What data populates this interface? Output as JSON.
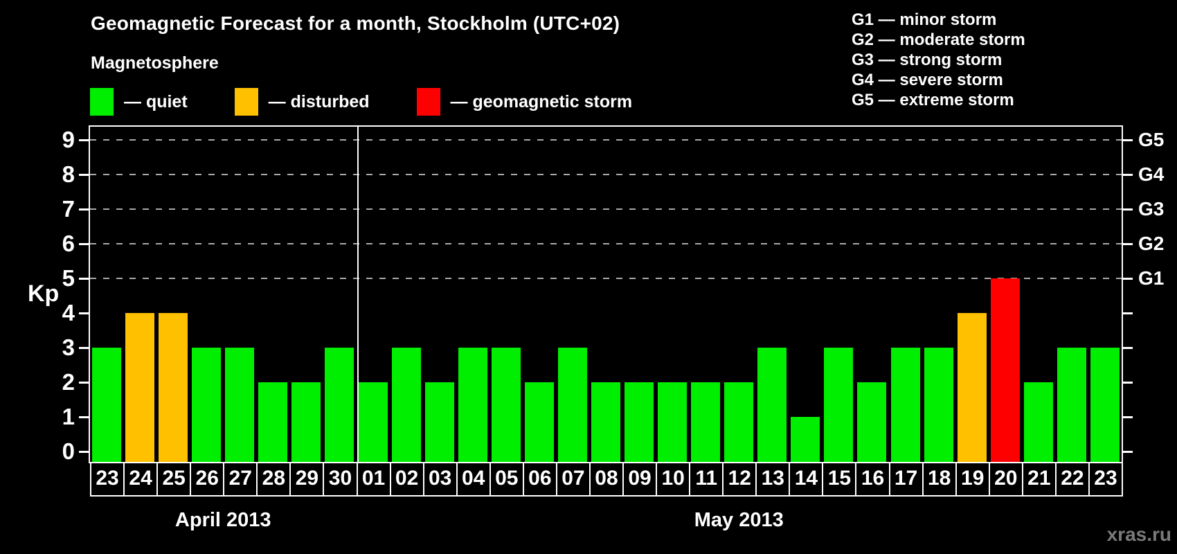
{
  "title": "Geomagnetic Forecast for a month, Stockholm (UTC+02)",
  "legend": {
    "heading": "Magnetosphere",
    "items": [
      {
        "name": "quiet",
        "label": "— quiet",
        "color": "#00ee00"
      },
      {
        "name": "disturbed",
        "label": "— disturbed",
        "color": "#ffc000"
      },
      {
        "name": "storm",
        "label": "— geomagnetic storm",
        "color": "#ff0000"
      }
    ]
  },
  "g_scale_legend": [
    "G1 — minor storm",
    "G2 — moderate storm",
    "G3 — strong storm",
    "G4 — severe storm",
    "G5 — extreme storm"
  ],
  "y_axis": {
    "label": "Kp",
    "ticks": [
      0,
      1,
      2,
      3,
      4,
      5,
      6,
      7,
      8,
      9
    ]
  },
  "right_axis": {
    "labels": [
      {
        "text": "G1",
        "kp": 5
      },
      {
        "text": "G2",
        "kp": 6
      },
      {
        "text": "G3",
        "kp": 7
      },
      {
        "text": "G4",
        "kp": 8
      },
      {
        "text": "G5",
        "kp": 9
      }
    ]
  },
  "months": [
    {
      "label": "April 2013",
      "days": 8
    },
    {
      "label": "May 2013",
      "days": 23
    }
  ],
  "watermark": "xras.ru",
  "chart_data": {
    "type": "bar",
    "title": "Geomagnetic Forecast for a month, Stockholm (UTC+02)",
    "ylabel": "Kp",
    "ylim": [
      0,
      9
    ],
    "grid": "dashed horizontal at Kp 5-9",
    "gridlines_at": [
      5,
      6,
      7,
      8,
      9
    ],
    "legend_position": "top-left",
    "categories": [
      "23",
      "24",
      "25",
      "26",
      "27",
      "28",
      "29",
      "30",
      "01",
      "02",
      "03",
      "04",
      "05",
      "06",
      "07",
      "08",
      "09",
      "10",
      "11",
      "12",
      "13",
      "14",
      "15",
      "16",
      "17",
      "18",
      "19",
      "20",
      "21",
      "22",
      "23"
    ],
    "values": [
      3,
      4,
      4,
      3,
      3,
      2,
      2,
      3,
      2,
      3,
      2,
      3,
      3,
      2,
      3,
      2,
      2,
      2,
      2,
      2,
      3,
      1,
      3,
      2,
      3,
      3,
      4,
      5,
      2,
      3,
      3
    ],
    "statuses": [
      "quiet",
      "disturbed",
      "disturbed",
      "quiet",
      "quiet",
      "quiet",
      "quiet",
      "quiet",
      "quiet",
      "quiet",
      "quiet",
      "quiet",
      "quiet",
      "quiet",
      "quiet",
      "quiet",
      "quiet",
      "quiet",
      "quiet",
      "quiet",
      "quiet",
      "quiet",
      "quiet",
      "quiet",
      "quiet",
      "quiet",
      "disturbed",
      "storm",
      "quiet",
      "quiet",
      "quiet"
    ],
    "status_colors": {
      "quiet": "#00ee00",
      "disturbed": "#ffc000",
      "storm": "#ff0000"
    }
  }
}
